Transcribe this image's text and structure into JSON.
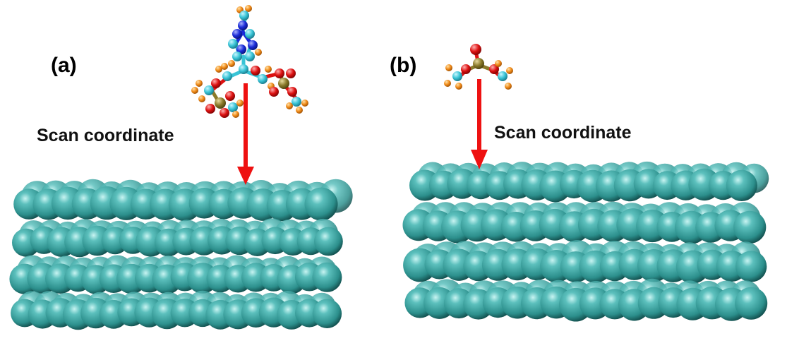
{
  "panels": [
    {
      "label": "(a)",
      "scan_label": "Scan coordinate",
      "layers": 4
    },
    {
      "label": "(b)",
      "scan_label": "Scan coordinate",
      "layers": 4
    }
  ],
  "colors": {
    "atom_surface": "#3aa6a4",
    "atom_highlight": "#bff0ee",
    "atom_shadow": "#0e4544",
    "arrow": "#ee1111",
    "mol_carbon": "#38c4d6",
    "mol_hydrogen": "#f08a18",
    "mol_oxygen": "#dd1111",
    "mol_phosphorus": "#8a7a2a",
    "mol_nitrogen": "#1a2bd8"
  }
}
